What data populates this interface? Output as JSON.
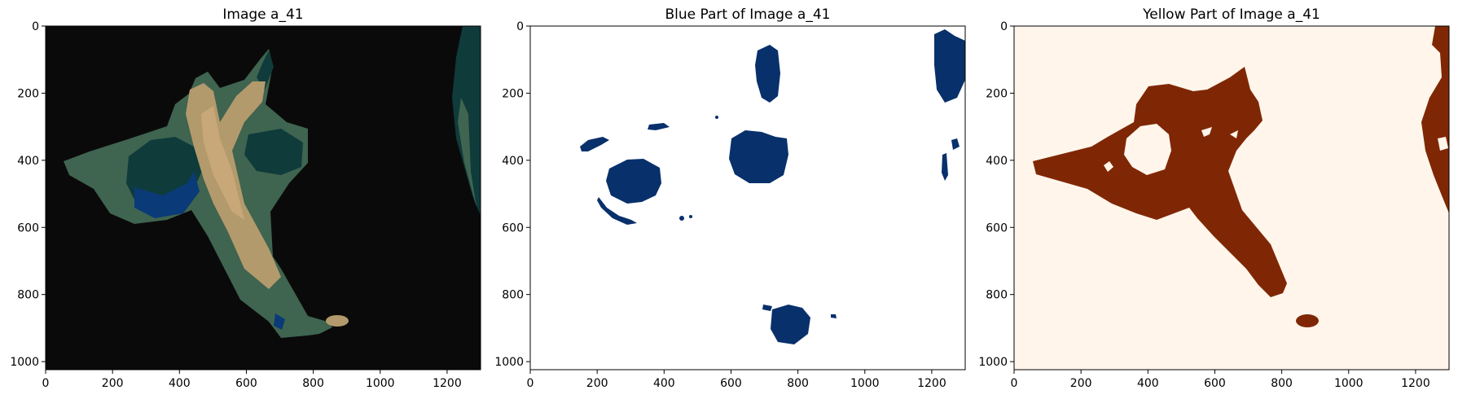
{
  "panels": [
    {
      "title": "Image a_41",
      "x_ticks": [
        "0",
        "200",
        "400",
        "600",
        "800",
        "1000",
        "1200"
      ],
      "y_ticks": [
        "0",
        "200",
        "400",
        "600",
        "800",
        "1000"
      ],
      "background": "#0b0a0a"
    },
    {
      "title": "Blue Part of Image a_41",
      "x_ticks": [
        "0",
        "200",
        "400",
        "600",
        "800",
        "1000",
        "1200"
      ],
      "y_ticks": [
        "0",
        "200",
        "400",
        "600",
        "800",
        "1000"
      ],
      "background": "#ffffff",
      "mask_color": "#08306b"
    },
    {
      "title": "Yellow Part of Image a_41",
      "x_ticks": [
        "0",
        "200",
        "400",
        "600",
        "800",
        "1000",
        "1200"
      ],
      "y_ticks": [
        "0",
        "200",
        "400",
        "600",
        "800",
        "1000"
      ],
      "background": "#fff5eb",
      "mask_color": "#7f2704"
    }
  ],
  "colors": {
    "dark_green": "#0f3b3b",
    "mid_green": "#3f6450",
    "tan": "#b39a6c",
    "light_tan": "#c8a878",
    "blue": "#0a3a78",
    "teal": "#4d7a6a"
  }
}
